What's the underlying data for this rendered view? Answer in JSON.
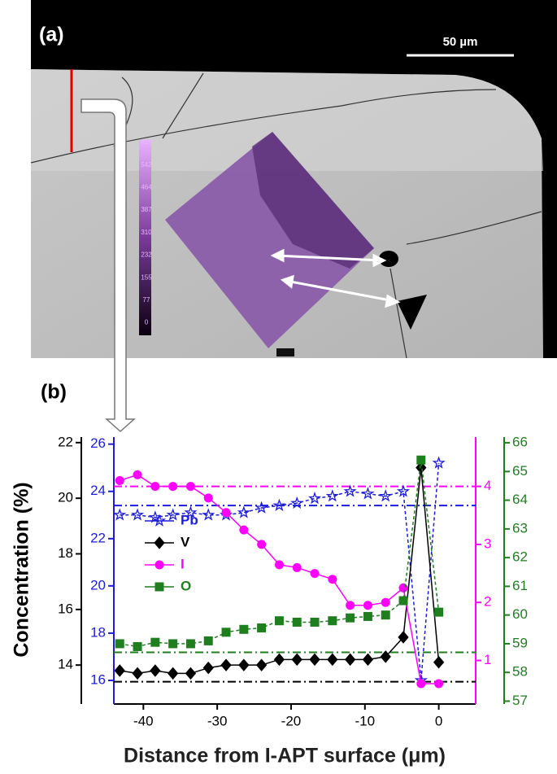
{
  "panel_a": {
    "label": "(a)",
    "scale_bar": "50 µm",
    "colorbar_labels": [
      "619",
      "542",
      "464",
      "387",
      "310",
      "232",
      "155",
      "77",
      "0"
    ]
  },
  "chart_data": {
    "type": "line",
    "panel_label": "(b)",
    "xlabel": "Distance from I-APT surface (μm)",
    "ylabel": "Concentration (%)",
    "x": [
      -43.2,
      -40.8,
      -38.4,
      -36,
      -33.6,
      -31.2,
      -28.8,
      -26.4,
      -24,
      -21.6,
      -19.2,
      -16.8,
      -14.4,
      -12,
      -9.6,
      -7.2,
      -4.8,
      -2.4,
      0
    ],
    "xlim": [
      -44,
      5
    ],
    "xticks": [
      -40,
      -30,
      -20,
      -10,
      0
    ],
    "ylim": [
      12.6,
      22.2
    ],
    "yticks": [
      14,
      16,
      18,
      20,
      22
    ],
    "y2lim": [
      15,
      26.3
    ],
    "y2ticks": [
      16,
      18,
      20,
      22,
      24,
      26
    ],
    "y3lim": [
      0.25,
      4.85
    ],
    "y3ticks": [
      1,
      2,
      3,
      4
    ],
    "y4lim": [
      56.9,
      66.2
    ],
    "y4ticks": [
      57,
      58,
      59,
      60,
      61,
      62,
      63,
      64,
      65,
      66
    ],
    "legend": "upper left",
    "series": [
      {
        "name": "Pb",
        "color": "#1c1cdc",
        "axis": "y2",
        "marker": "star",
        "linestyle": "dashed",
        "reference_line": 23.4,
        "values": [
          23.0,
          23.0,
          22.9,
          23.0,
          23.1,
          23.0,
          23.0,
          23.1,
          23.3,
          23.4,
          23.5,
          23.7,
          23.8,
          24.0,
          23.9,
          23.8,
          24.0,
          16.0,
          25.2
        ]
      },
      {
        "name": "V",
        "color": "#000000",
        "axis": "y",
        "marker": "diamond",
        "linestyle": "solid",
        "reference_line": 13.4,
        "values": [
          13.8,
          13.7,
          13.8,
          13.7,
          13.7,
          13.9,
          14.0,
          14.0,
          14.0,
          14.2,
          14.2,
          14.2,
          14.2,
          14.2,
          14.2,
          14.3,
          15.0,
          21.1,
          14.1
        ]
      },
      {
        "name": "I",
        "color": "#ff00ff",
        "axis": "y3",
        "marker": "circle",
        "linestyle": "solid",
        "reference_line": 4.0,
        "values": [
          4.1,
          4.2,
          4.0,
          4.0,
          4.0,
          3.8,
          3.55,
          3.25,
          3.0,
          2.65,
          2.6,
          2.5,
          2.4,
          1.95,
          1.95,
          2.0,
          2.25,
          0.6,
          0.6
        ]
      },
      {
        "name": "O",
        "color": "#1f7f1f",
        "axis": "y4",
        "marker": "square",
        "linestyle": "dashed",
        "reference_line": 58.7,
        "values": [
          59.0,
          58.9,
          59.05,
          59.0,
          59.0,
          59.1,
          59.4,
          59.5,
          59.55,
          59.8,
          59.75,
          59.75,
          59.8,
          59.9,
          59.95,
          60.0,
          60.5,
          65.4,
          60.1
        ]
      }
    ]
  }
}
